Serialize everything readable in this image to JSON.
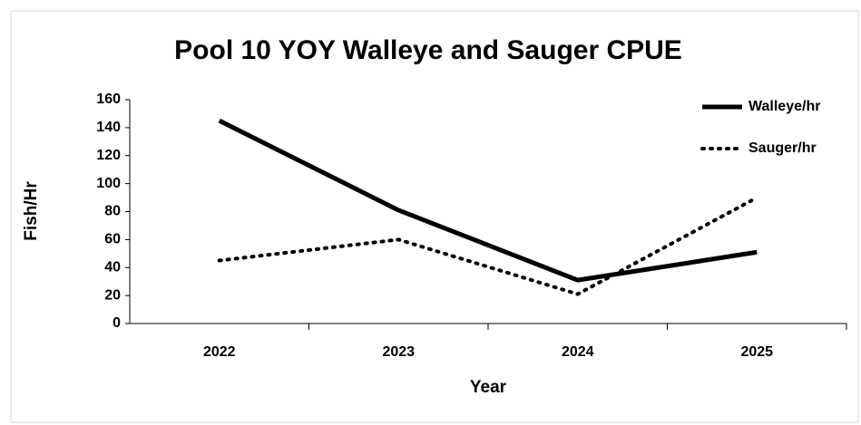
{
  "chart_data": {
    "type": "line",
    "title": "Pool 10 YOY Walleye and Sauger CPUE",
    "x_label": "Year",
    "y_label": "Fish/Hr",
    "categories": [
      "2022",
      "2023",
      "2024",
      "2025"
    ],
    "series": [
      {
        "name": "Walleye/hr",
        "color": "#000000",
        "line_style": "solid",
        "values": [
          145,
          81,
          31,
          51
        ]
      },
      {
        "name": "Sauger/hr",
        "color": "#000000",
        "line_style": "dotted",
        "values": [
          45,
          60,
          21,
          90
        ]
      }
    ],
    "ylim": [
      0,
      160
    ],
    "yticks": [
      0,
      20,
      40,
      60,
      80,
      100,
      120,
      140,
      160
    ],
    "grid": false,
    "legend": "top-right"
  }
}
